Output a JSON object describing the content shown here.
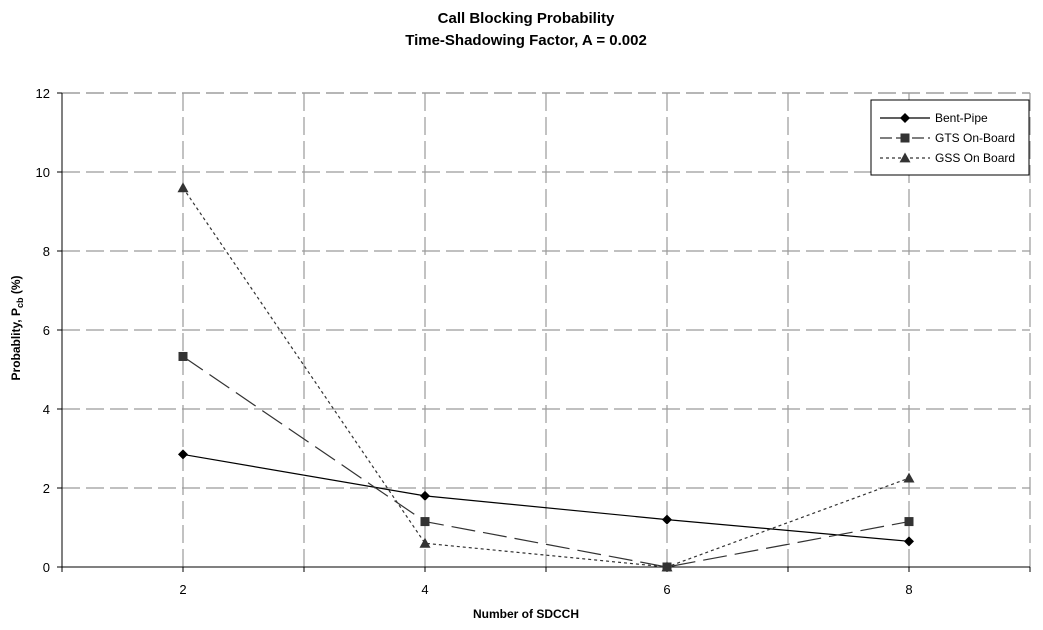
{
  "chart_data": {
    "type": "line",
    "title": "Call Blocking Probability",
    "subtitle": "Time-Shadowing Factor, A = 0.002",
    "xlabel": "Number of SDCCH",
    "ylabel": {
      "main": "Probablity, P",
      "sub": "cb",
      "suffix": " (%)"
    },
    "x_categories": [
      "2",
      "4",
      "6",
      "8"
    ],
    "xlim": [
      1,
      9
    ],
    "ylim": [
      0,
      12
    ],
    "y_ticks": [
      "0",
      "2",
      "4",
      "6",
      "8",
      "10",
      "12"
    ],
    "grid": true,
    "legend_position": "top-right",
    "series": [
      {
        "name": "Bent-Pipe",
        "marker": "diamond",
        "line_style": "solid",
        "color": "#000000",
        "x": [
          2,
          4,
          6,
          8
        ],
        "values": [
          2.85,
          1.8,
          1.2,
          0.65
        ]
      },
      {
        "name": "GTS On-Board",
        "marker": "square",
        "line_style": "long-dash",
        "color": "#333333",
        "x": [
          2,
          4,
          6,
          8
        ],
        "values": [
          5.33,
          1.15,
          0.0,
          1.15
        ]
      },
      {
        "name": "GSS On Board",
        "marker": "triangle",
        "line_style": "dotted",
        "color": "#333333",
        "x": [
          2,
          4,
          6,
          8
        ],
        "values": [
          9.6,
          0.6,
          0.0,
          2.25
        ]
      }
    ]
  }
}
